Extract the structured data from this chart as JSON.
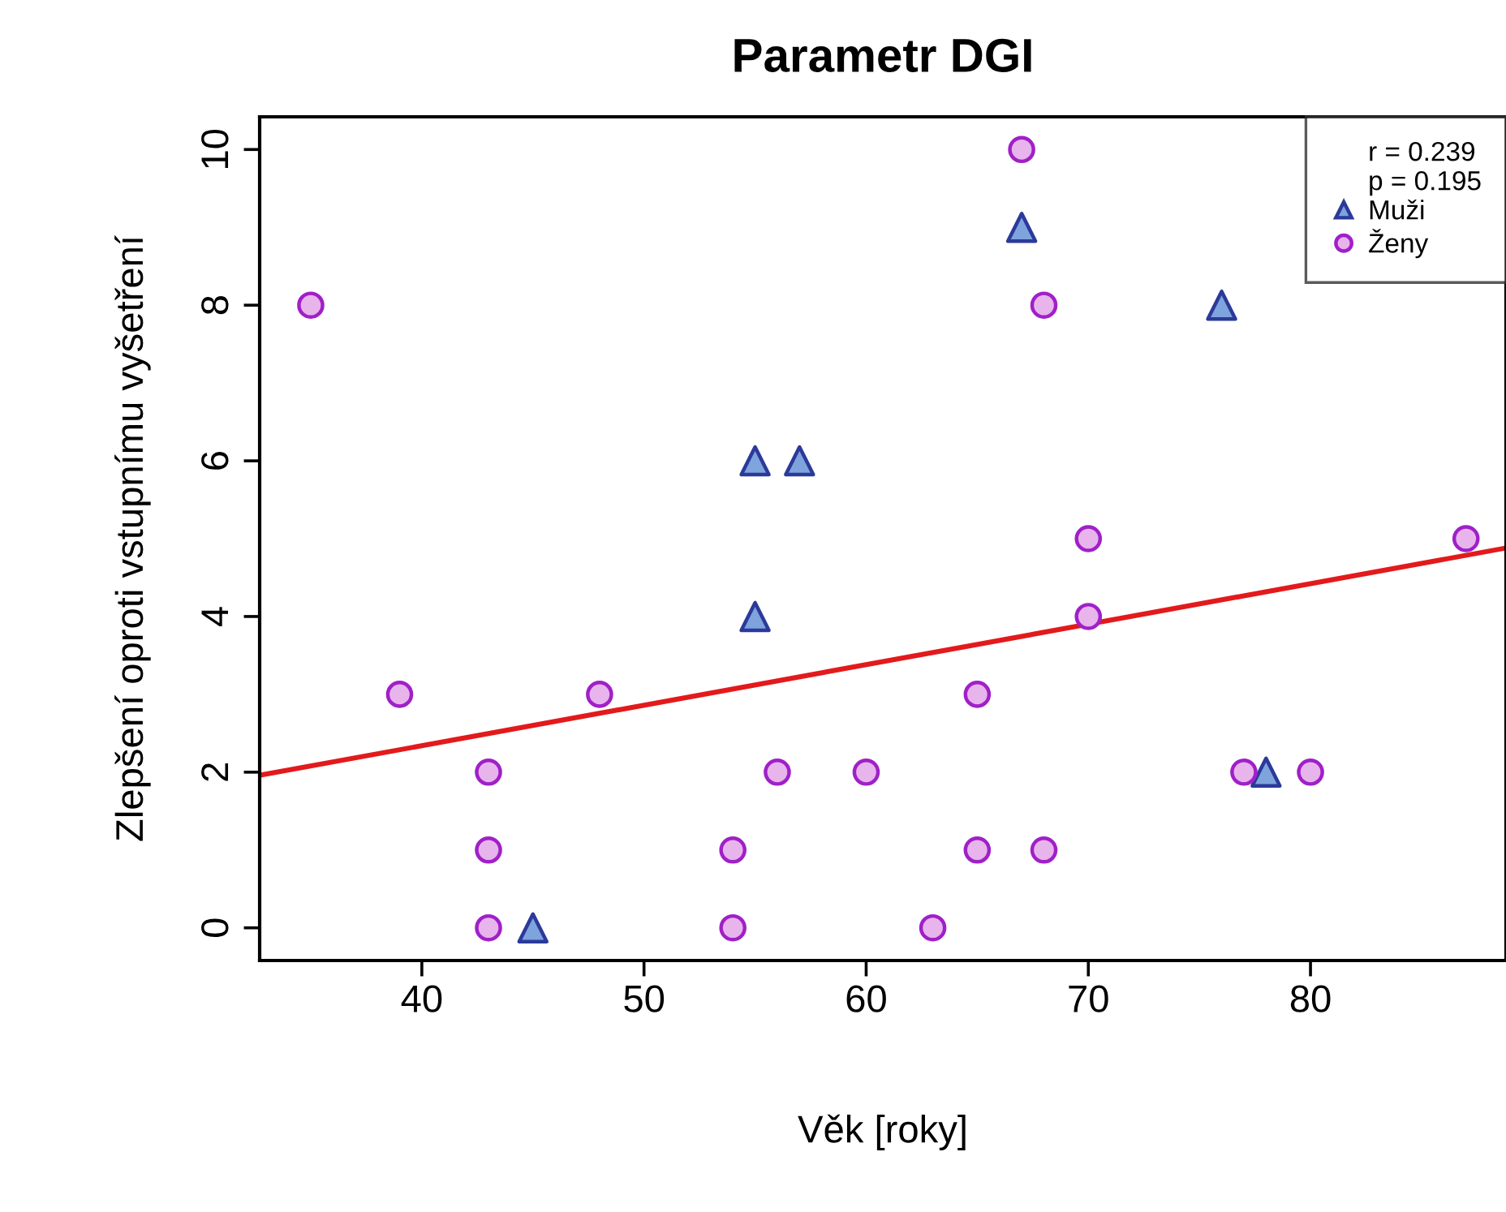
{
  "chart_data": {
    "type": "scatter",
    "title": "Parametr DGI",
    "xlabel": "Věk [roky]",
    "ylabel": "Zlepšení oproti vstupnímu vyšetření",
    "xlim": [
      32.7,
      88.8
    ],
    "ylim": [
      -0.42,
      10.42
    ],
    "xticks": [
      40,
      50,
      60,
      70,
      80
    ],
    "yticks": [
      0,
      2,
      4,
      6,
      8,
      10
    ],
    "grid": false,
    "legend": "top right",
    "annotations": [
      "r = 0.239",
      "p = 0.195"
    ],
    "series": [
      {
        "name": "Muži",
        "marker": "triangle",
        "color": "#7fa3dc",
        "x": [
          45,
          55,
          55,
          57,
          67,
          76,
          78
        ],
        "values": [
          0,
          4,
          6,
          6,
          9,
          8,
          2
        ]
      },
      {
        "name": "Ženy",
        "marker": "circle",
        "color": "#e8b4ec",
        "x": [
          35,
          39,
          43,
          43,
          43,
          48,
          54,
          54,
          56,
          60,
          63,
          65,
          65,
          67,
          68,
          68,
          70,
          70,
          77,
          80,
          87
        ],
        "values": [
          8,
          3,
          2,
          1,
          0,
          3,
          1,
          0,
          2,
          2,
          0,
          3,
          1,
          10,
          8,
          1,
          5,
          4,
          2,
          2,
          5
        ]
      },
      {
        "type": "line",
        "color": "#e31a1c",
        "x": [
          32.7,
          88.8
        ],
        "values": [
          1.96,
          4.88
        ]
      }
    ]
  }
}
